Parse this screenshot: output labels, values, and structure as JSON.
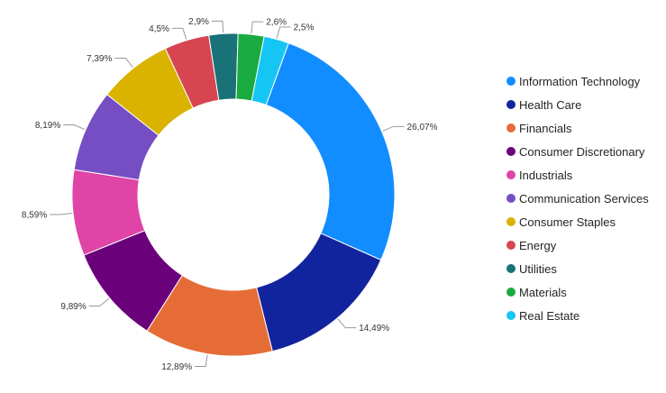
{
  "chart_data": {
    "type": "pie",
    "variant": "donut",
    "categories": [
      "Information Technology",
      "Health Care",
      "Financials",
      "Consumer Discretionary",
      "Industrials",
      "Communication Services",
      "Consumer Staples",
      "Energy",
      "Utilities",
      "Materials",
      "Real Estate"
    ],
    "values": [
      26.07,
      14.49,
      12.89,
      9.89,
      8.59,
      8.19,
      7.39,
      4.5,
      2.9,
      2.6,
      2.5
    ],
    "data_labels": [
      "26,07%",
      "14,49%",
      "12,89%",
      "9,89%",
      "8,59%",
      "8,19%",
      "7,39%",
      "4,5%",
      "2,9%",
      "2,6%",
      "2,5%"
    ],
    "colors": [
      "#118DFF",
      "#12239E",
      "#E66C37",
      "#6B007B",
      "#E044A7",
      "#744EC2",
      "#D9B300",
      "#D64550",
      "#197278",
      "#1AAB40",
      "#15C6F4"
    ],
    "legend_position": "right",
    "start_angle_deg": 20
  }
}
